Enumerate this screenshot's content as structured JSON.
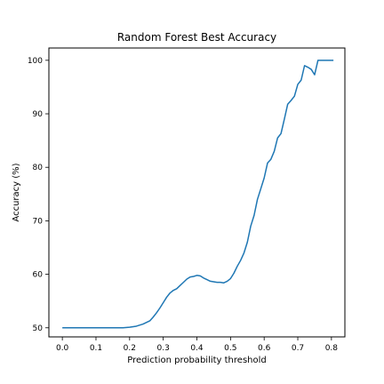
{
  "chart_data": {
    "type": "line",
    "title": "Random Forest Best Accuracy",
    "xlabel": "Prediction probability threshold",
    "ylabel": "Accuracy (%)",
    "xlim": [
      -0.04,
      0.84
    ],
    "ylim": [
      48.3,
      102.3
    ],
    "xticks": [
      0.0,
      0.1,
      0.2,
      0.3,
      0.4,
      0.5,
      0.6,
      0.7,
      0.8
    ],
    "xtick_labels": [
      "0.0",
      "0.1",
      "0.2",
      "0.3",
      "0.4",
      "0.5",
      "0.6",
      "0.7",
      "0.8"
    ],
    "yticks": [
      50,
      60,
      70,
      80,
      90,
      100
    ],
    "ytick_labels": [
      "50",
      "60",
      "70",
      "80",
      "90",
      "100"
    ],
    "grid": false,
    "line_color": "#1f77b4",
    "series": [
      {
        "x": [
          0.0,
          0.1,
          0.18,
          0.2,
          0.22,
          0.24,
          0.26,
          0.27,
          0.28,
          0.29,
          0.3,
          0.31,
          0.32,
          0.33,
          0.34,
          0.35,
          0.36,
          0.37,
          0.38,
          0.39,
          0.4,
          0.41,
          0.42,
          0.43,
          0.44,
          0.45,
          0.46,
          0.47,
          0.48,
          0.49,
          0.5,
          0.51,
          0.52,
          0.53,
          0.54,
          0.55,
          0.56,
          0.57,
          0.58,
          0.59,
          0.6,
          0.61,
          0.62,
          0.63,
          0.64,
          0.65,
          0.66,
          0.67,
          0.68,
          0.69,
          0.7,
          0.71,
          0.72,
          0.73,
          0.74,
          0.75,
          0.76,
          0.77,
          0.78,
          0.79,
          0.8,
          0.806
        ],
        "y": [
          50.0,
          50.0,
          50.0,
          50.1,
          50.3,
          50.7,
          51.3,
          52.0,
          52.8,
          53.7,
          54.7,
          55.7,
          56.5,
          57.0,
          57.3,
          57.9,
          58.5,
          59.1,
          59.5,
          59.6,
          59.8,
          59.7,
          59.3,
          59.0,
          58.7,
          58.6,
          58.5,
          58.5,
          58.4,
          58.7,
          59.2,
          60.2,
          61.5,
          62.6,
          64.0,
          66.0,
          69.0,
          71.0,
          74.0,
          76.0,
          78.0,
          80.8,
          81.5,
          83.0,
          85.5,
          86.3,
          89.0,
          91.8,
          92.5,
          93.3,
          95.5,
          96.3,
          99.0,
          98.7,
          98.3,
          97.3,
          100.0,
          100.0,
          100.0,
          100.0,
          100.0,
          100.0
        ]
      }
    ]
  }
}
